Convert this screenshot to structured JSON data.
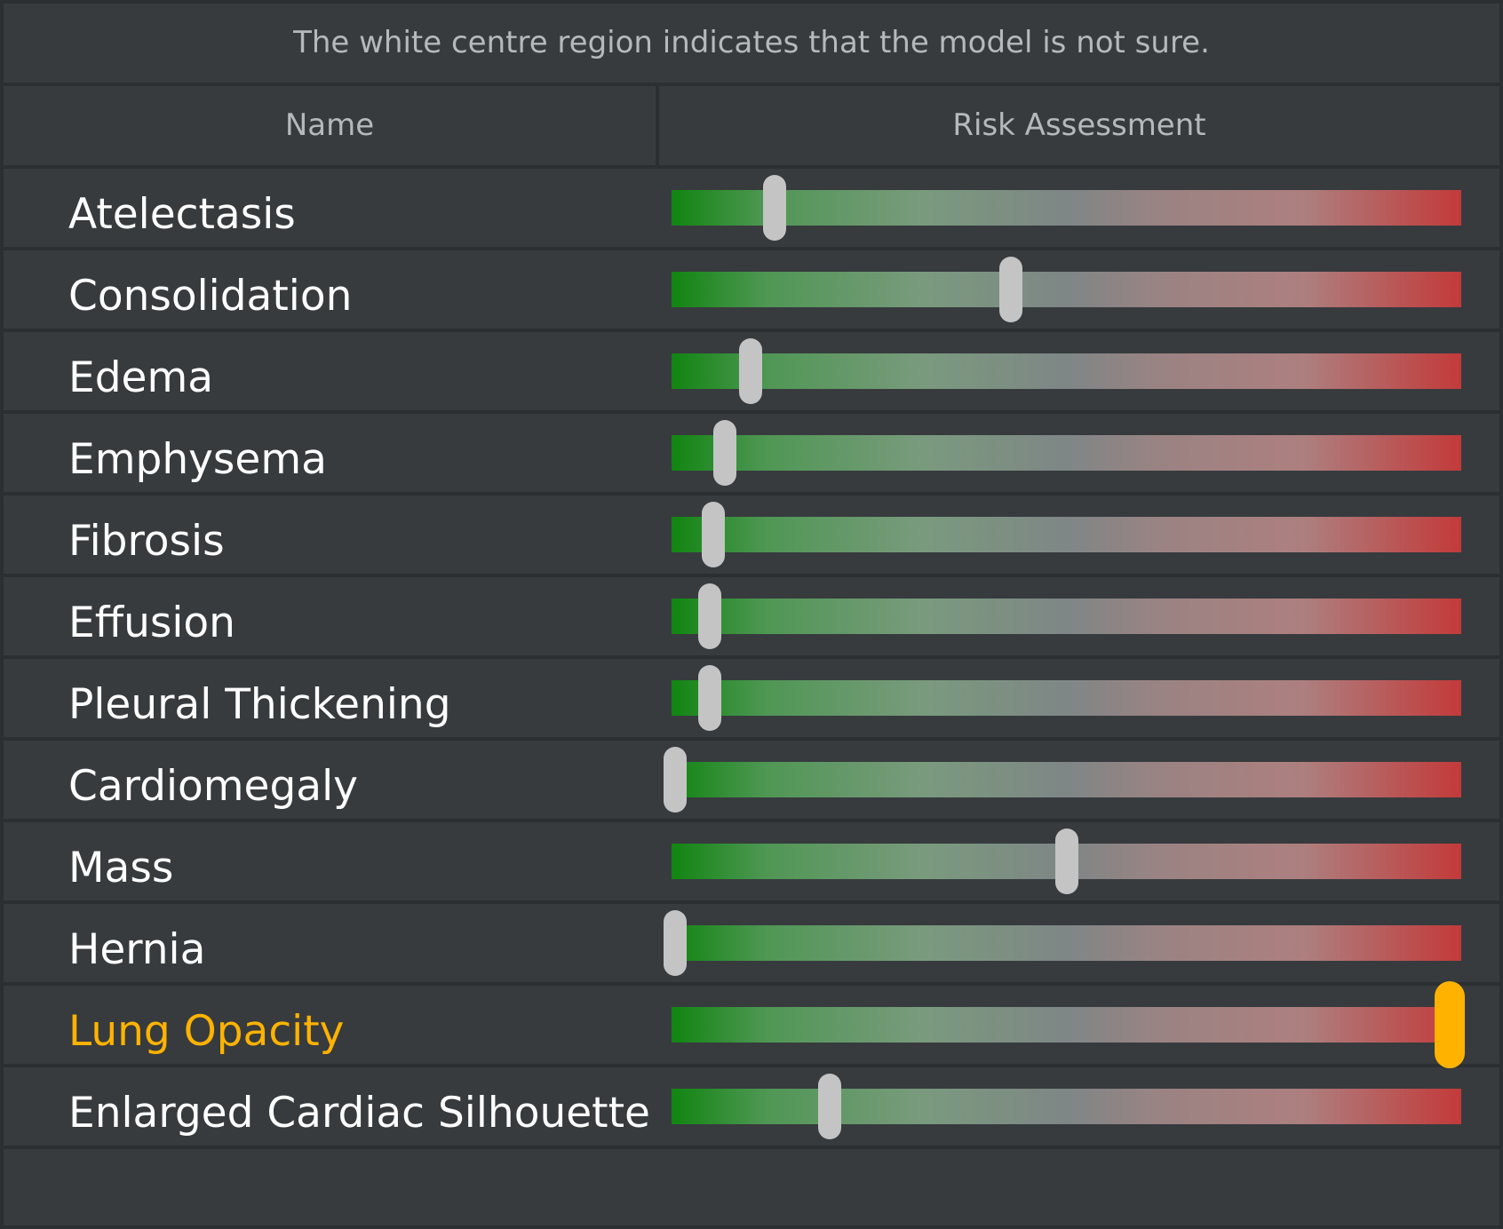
{
  "caption": "The white centre region indicates that the model is not sure.",
  "columns": {
    "name": "Name",
    "risk": "Risk Assessment"
  },
  "colors": {
    "low_risk": "#118511",
    "uncertain": "#7f8686",
    "high_risk": "#c33a3a",
    "highlight": "#ffb300",
    "thumb": "#c4c4c4"
  },
  "rows": [
    {
      "name": "Atelectasis",
      "risk": 0.13,
      "highlighted": false
    },
    {
      "name": "Consolidation",
      "risk": 0.43,
      "highlighted": false
    },
    {
      "name": "Edema",
      "risk": 0.1,
      "highlighted": false
    },
    {
      "name": "Emphysema",
      "risk": 0.067,
      "highlighted": false
    },
    {
      "name": "Fibrosis",
      "risk": 0.053,
      "highlighted": false
    },
    {
      "name": "Effusion",
      "risk": 0.048,
      "highlighted": false
    },
    {
      "name": "Pleural Thickening",
      "risk": 0.048,
      "highlighted": false
    },
    {
      "name": "Cardiomegaly",
      "risk": 0.005,
      "highlighted": false
    },
    {
      "name": "Mass",
      "risk": 0.5,
      "highlighted": false
    },
    {
      "name": "Hernia",
      "risk": 0.005,
      "highlighted": false
    },
    {
      "name": "Lung Opacity",
      "risk": 0.985,
      "highlighted": true
    },
    {
      "name": "Enlarged Cardiac Silhouette",
      "risk": 0.2,
      "highlighted": false
    }
  ]
}
